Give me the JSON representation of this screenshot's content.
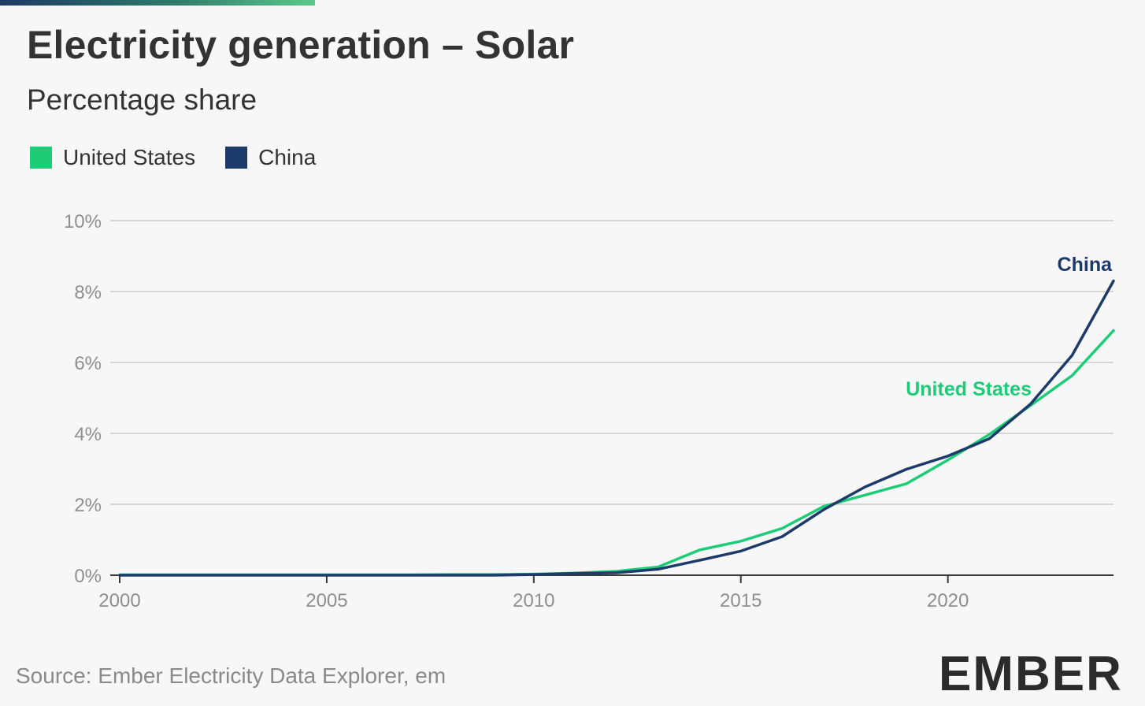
{
  "header": {
    "title": "Electricity generation – Solar",
    "subtitle": "Percentage share"
  },
  "legend": {
    "items": [
      {
        "label": "United States",
        "color": "#1ecc78"
      },
      {
        "label": "China",
        "color": "#1c3a6a"
      }
    ]
  },
  "chart_data": {
    "type": "line",
    "title": "Electricity generation – Solar",
    "subtitle": "Percentage share",
    "xlabel": "",
    "ylabel": "",
    "xlim": [
      2000,
      2024
    ],
    "ylim": [
      0,
      10
    ],
    "x_ticks": [
      2000,
      2005,
      2010,
      2015,
      2020
    ],
    "x_tick_labels": [
      "2000",
      "2005",
      "2010",
      "2015",
      "2020"
    ],
    "y_ticks": [
      0,
      2,
      4,
      6,
      8,
      10
    ],
    "y_tick_labels": [
      "0%",
      "2%",
      "4%",
      "6%",
      "8%",
      "10%"
    ],
    "grid": "horizontal",
    "legend_position": "top-left",
    "series": [
      {
        "name": "United States",
        "color": "#1ecc78",
        "end_label": "United States",
        "x": [
          2000,
          2001,
          2002,
          2003,
          2004,
          2005,
          2006,
          2007,
          2008,
          2009,
          2010,
          2011,
          2012,
          2013,
          2014,
          2015,
          2016,
          2017,
          2018,
          2019,
          2020,
          2021,
          2022,
          2023,
          2024
        ],
        "y": [
          0.01,
          0.01,
          0.01,
          0.01,
          0.01,
          0.01,
          0.01,
          0.01,
          0.02,
          0.02,
          0.03,
          0.06,
          0.11,
          0.23,
          0.71,
          0.96,
          1.32,
          1.94,
          2.26,
          2.58,
          3.25,
          3.97,
          4.79,
          5.63,
          6.9
        ]
      },
      {
        "name": "China",
        "color": "#1c3a6a",
        "end_label": "China",
        "x": [
          2000,
          2001,
          2002,
          2003,
          2004,
          2005,
          2006,
          2007,
          2008,
          2009,
          2010,
          2011,
          2012,
          2013,
          2014,
          2015,
          2016,
          2017,
          2018,
          2019,
          2020,
          2021,
          2022,
          2023,
          2024
        ],
        "y": [
          0.0,
          0.0,
          0.0,
          0.0,
          0.0,
          0.0,
          0.0,
          0.0,
          0.0,
          0.0,
          0.02,
          0.05,
          0.07,
          0.17,
          0.42,
          0.68,
          1.09,
          1.85,
          2.49,
          2.99,
          3.36,
          3.85,
          4.83,
          6.2,
          8.3
        ]
      }
    ]
  },
  "footer": {
    "source": "Source: Ember Electricity Data Explorer, em",
    "logo_text": "EMBER"
  }
}
